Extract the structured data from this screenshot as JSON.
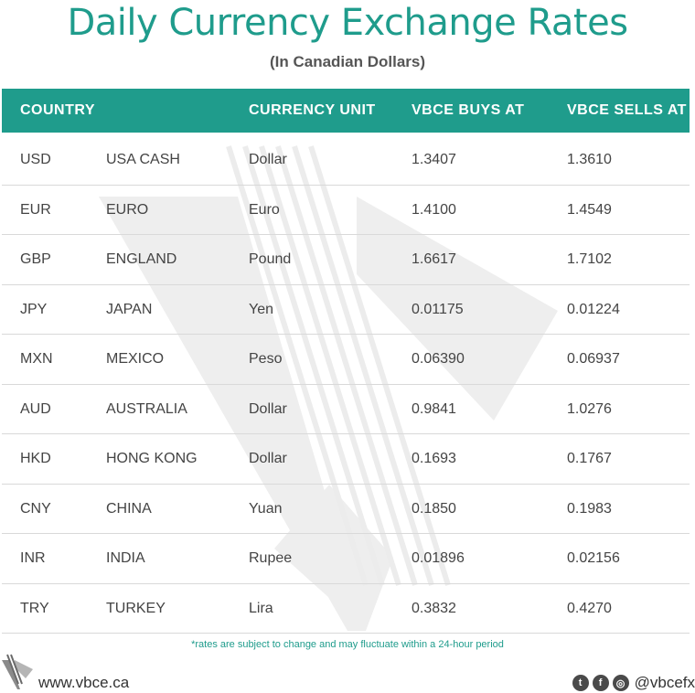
{
  "title": "Daily Currency Exchange Rates",
  "subtitle": "(In Canadian Dollars)",
  "headers": {
    "country": "COUNTRY",
    "unit": "CURRENCY UNIT",
    "buy": "VBCE BUYS AT",
    "sell": "VBCE SELLS AT"
  },
  "rows": [
    {
      "code": "USD",
      "country": "USA CASH",
      "unit": "Dollar",
      "buy": "1.3407",
      "sell": "1.3610"
    },
    {
      "code": "EUR",
      "country": "EURO",
      "unit": "Euro",
      "buy": "1.4100",
      "sell": "1.4549"
    },
    {
      "code": "GBP",
      "country": "ENGLAND",
      "unit": "Pound",
      "buy": "1.6617",
      "sell": "1.7102"
    },
    {
      "code": "JPY",
      "country": "JAPAN",
      "unit": "Yen",
      "buy": "0.01175",
      "sell": "0.01224"
    },
    {
      "code": "MXN",
      "country": "MEXICO",
      "unit": "Peso",
      "buy": "0.06390",
      "sell": "0.06937"
    },
    {
      "code": "AUD",
      "country": "AUSTRALIA",
      "unit": "Dollar",
      "buy": "0.9841",
      "sell": "1.0276"
    },
    {
      "code": "HKD",
      "country": "HONG KONG",
      "unit": "Dollar",
      "buy": "0.1693",
      "sell": "0.1767"
    },
    {
      "code": "CNY",
      "country": "CHINA",
      "unit": "Yuan",
      "buy": "0.1850",
      "sell": "0.1983"
    },
    {
      "code": "INR",
      "country": "INDIA",
      "unit": "Rupee",
      "buy": "0.01896",
      "sell": "0.02156"
    },
    {
      "code": "TRY",
      "country": "TURKEY",
      "unit": "Lira",
      "buy": "0.3832",
      "sell": "0.4270"
    }
  ],
  "footnote": "*rates are subject to change and may fluctuate within a 24-hour period",
  "website": "www.vbce.ca",
  "social": {
    "handle": "@vbcefx",
    "icons": [
      "twitter-icon",
      "facebook-icon",
      "instagram-icon"
    ]
  },
  "colors": {
    "accent": "#1f9c8c",
    "text": "#444444",
    "divider": "#d9d9d9"
  }
}
